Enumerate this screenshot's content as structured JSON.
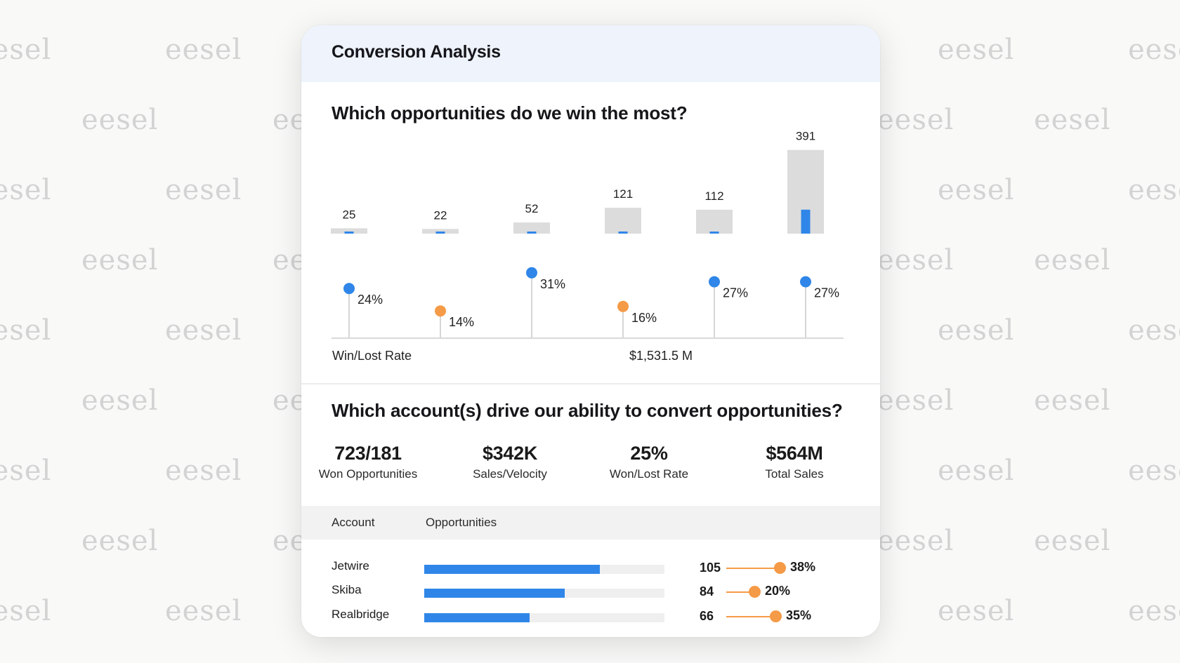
{
  "watermark": {
    "text": "eesel",
    "color": "#d3d3d3"
  },
  "card": {
    "title": "Conversion Analysis"
  },
  "colors": {
    "blue": "#2f86e8",
    "orange": "#f59a46",
    "gray_bar": "#dcdcdc",
    "header_bg": "#eef3fc"
  },
  "section1": {
    "title": "Which opportunities do we win the most?",
    "axis_left_label": "Win/Lost Rate",
    "axis_total_label": "$1,531.5 M"
  },
  "chart_data": {
    "type": "bar",
    "title": "Which opportunities do we win the most?",
    "categories": [
      "",
      "",
      "",
      "",
      "",
      ""
    ],
    "series": [
      {
        "name": "Opportunities",
        "values": [
          25,
          22,
          52,
          121,
          112,
          391
        ]
      },
      {
        "name": "Won",
        "values": [
          3,
          2,
          6,
          10,
          8,
          112
        ]
      },
      {
        "name": "Win/Lost Rate",
        "values": [
          24,
          14,
          31,
          16,
          27,
          27
        ],
        "unit": "%",
        "status": [
          "high",
          "low",
          "high",
          "low",
          "high",
          "high"
        ]
      }
    ],
    "bar_labels": [
      "25",
      "22",
      "52",
      "121",
      "112",
      "391"
    ],
    "rate_labels": [
      "24%",
      "14%",
      "31%",
      "16%",
      "27%",
      "27%"
    ],
    "xlabel": "Win/Lost Rate",
    "total_label": "$1,531.5 M",
    "ylim": [
      0,
      400
    ],
    "rate_range": [
      10,
      35
    ]
  },
  "section2": {
    "title": "Which account(s) drive our ability to convert opportunities?",
    "kpis": [
      {
        "value": "723/181",
        "label": "Won Opportunities"
      },
      {
        "value": "$342K",
        "label": "Sales/Velocity"
      },
      {
        "value": "25%",
        "label": "Won/Lost Rate"
      },
      {
        "value": "$564M",
        "label": "Total Sales"
      }
    ],
    "table": {
      "headers": {
        "account": "Account",
        "opportunities": "Opportunities"
      },
      "rows": [
        {
          "account": "Jetwire",
          "bar_fraction": 0.73,
          "count": "105",
          "rate": "38%",
          "rate_fraction": 0.38
        },
        {
          "account": "Skiba",
          "bar_fraction": 0.585,
          "count": "84",
          "rate": "20%",
          "rate_fraction": 0.2
        },
        {
          "account": "Realbridge",
          "bar_fraction": 0.44,
          "count": "66",
          "rate": "35%",
          "rate_fraction": 0.35
        }
      ]
    }
  }
}
